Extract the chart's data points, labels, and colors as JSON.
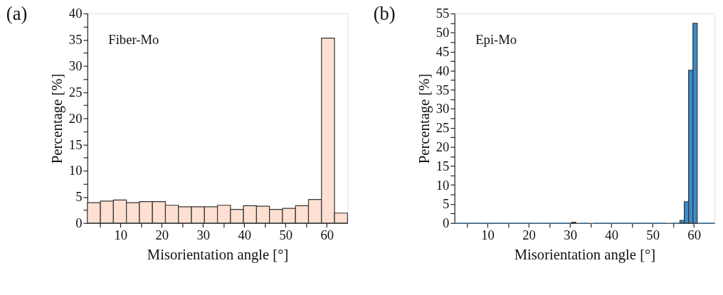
{
  "chart_data": [
    {
      "type": "histogram",
      "title": "(a)",
      "xlabel": "Misorientation angle [°]",
      "ylabel": "Percentage [%]",
      "annotations": [
        "Fiber-Mo"
      ],
      "bins": [
        2,
        5.15,
        8.3,
        11.45,
        14.6,
        17.75,
        20.9,
        24.05,
        27.2,
        30.35,
        33.5,
        36.65,
        39.8,
        42.95,
        46.1,
        49.25,
        52.4,
        55.55,
        58.7,
        61.85,
        65
      ],
      "values": [
        3.9,
        4.2,
        4.4,
        3.9,
        4.1,
        4.1,
        3.4,
        3.1,
        3.1,
        3.1,
        3.4,
        2.6,
        3.3,
        3.2,
        2.6,
        2.8,
        3.3,
        4.5,
        35.3,
        1.9
      ],
      "color": "#fde0d2",
      "xlim": [
        2,
        65
      ],
      "ylim": [
        0,
        40
      ],
      "xticks": [
        {
          "value": 5,
          "label": null
        },
        10,
        {
          "value": 15,
          "label": null
        },
        20,
        {
          "value": 25,
          "label": null
        },
        30,
        {
          "value": 35,
          "label": null
        },
        40,
        {
          "value": 45,
          "label": null
        },
        50,
        {
          "value": 55,
          "label": null
        },
        60
      ],
      "yticks": [
        0,
        {
          "value": 2.5,
          "label": null
        },
        5,
        {
          "value": 7.5,
          "label": null
        },
        10,
        {
          "value": 12.5,
          "label": null
        },
        15,
        {
          "value": 17.5,
          "label": null
        },
        20,
        {
          "value": 22.5,
          "label": null
        },
        25,
        {
          "value": 27.5,
          "label": null
        },
        30,
        {
          "value": 32.5,
          "label": null
        },
        35,
        {
          "value": 37.5,
          "label": null
        },
        40
      ],
      "grid": false
    },
    {
      "type": "histogram",
      "title": "(b)",
      "xlabel": "Misorientation angle [°]",
      "ylabel": "Percentage [%]",
      "annotations": [
        "Epi-Mo"
      ],
      "bins": [
        2,
        3.05,
        4.1,
        5.15,
        6.2,
        7.25,
        8.3,
        9.35,
        10.4,
        11.45,
        12.5,
        13.55,
        14.6,
        15.65,
        16.7,
        17.75,
        18.8,
        19.85,
        20.9,
        21.95,
        23,
        24.05,
        25.1,
        26.15,
        27.2,
        28.25,
        29.3,
        30.35,
        31.4,
        32.45,
        33.5,
        34.55,
        35.6,
        36.65,
        37.7,
        38.75,
        39.8,
        40.85,
        41.9,
        42.95,
        44,
        45.05,
        46.1,
        47.15,
        48.2,
        49.25,
        50.3,
        51.35,
        52.4,
        53.45,
        54.5,
        55.55,
        56.6,
        57.65,
        58.7,
        59.75,
        60.8,
        61.85,
        62.9,
        63.95,
        65
      ],
      "values": [
        0,
        0,
        0,
        0,
        0,
        0,
        0,
        0,
        0,
        0,
        0,
        0,
        0,
        0,
        0,
        0,
        0,
        0,
        0,
        0,
        0,
        0,
        0,
        0,
        0,
        0,
        0,
        0.2,
        null,
        0,
        0,
        null,
        0,
        0,
        0,
        0,
        0,
        0,
        0,
        0,
        0,
        0,
        0,
        0,
        0,
        0,
        0,
        0,
        0,
        null,
        0,
        0,
        0.7,
        5.6,
        40.1,
        52.4,
        0,
        0,
        0,
        0
      ],
      "color": "#3a8dca",
      "xlim": [
        2,
        65
      ],
      "ylim": [
        0,
        55
      ],
      "xticks": [
        {
          "value": 5,
          "label": null
        },
        10,
        {
          "value": 15,
          "label": null
        },
        20,
        {
          "value": 25,
          "label": null
        },
        30,
        {
          "value": 35,
          "label": null
        },
        40,
        {
          "value": 45,
          "label": null
        },
        50,
        {
          "value": 55,
          "label": null
        },
        60
      ],
      "yticks": [
        0,
        {
          "value": 2.5,
          "label": null
        },
        5,
        {
          "value": 7.5,
          "label": null
        },
        10,
        {
          "value": 12.5,
          "label": null
        },
        15,
        {
          "value": 17.5,
          "label": null
        },
        20,
        {
          "value": 22.5,
          "label": null
        },
        25,
        {
          "value": 27.5,
          "label": null
        },
        30,
        {
          "value": 32.5,
          "label": null
        },
        35,
        {
          "value": 37.5,
          "label": null
        },
        40,
        {
          "value": 42.5,
          "label": null
        },
        45,
        {
          "value": 47.5,
          "label": null
        },
        50,
        {
          "value": 52.5,
          "label": null
        },
        55
      ],
      "grid": false
    }
  ]
}
